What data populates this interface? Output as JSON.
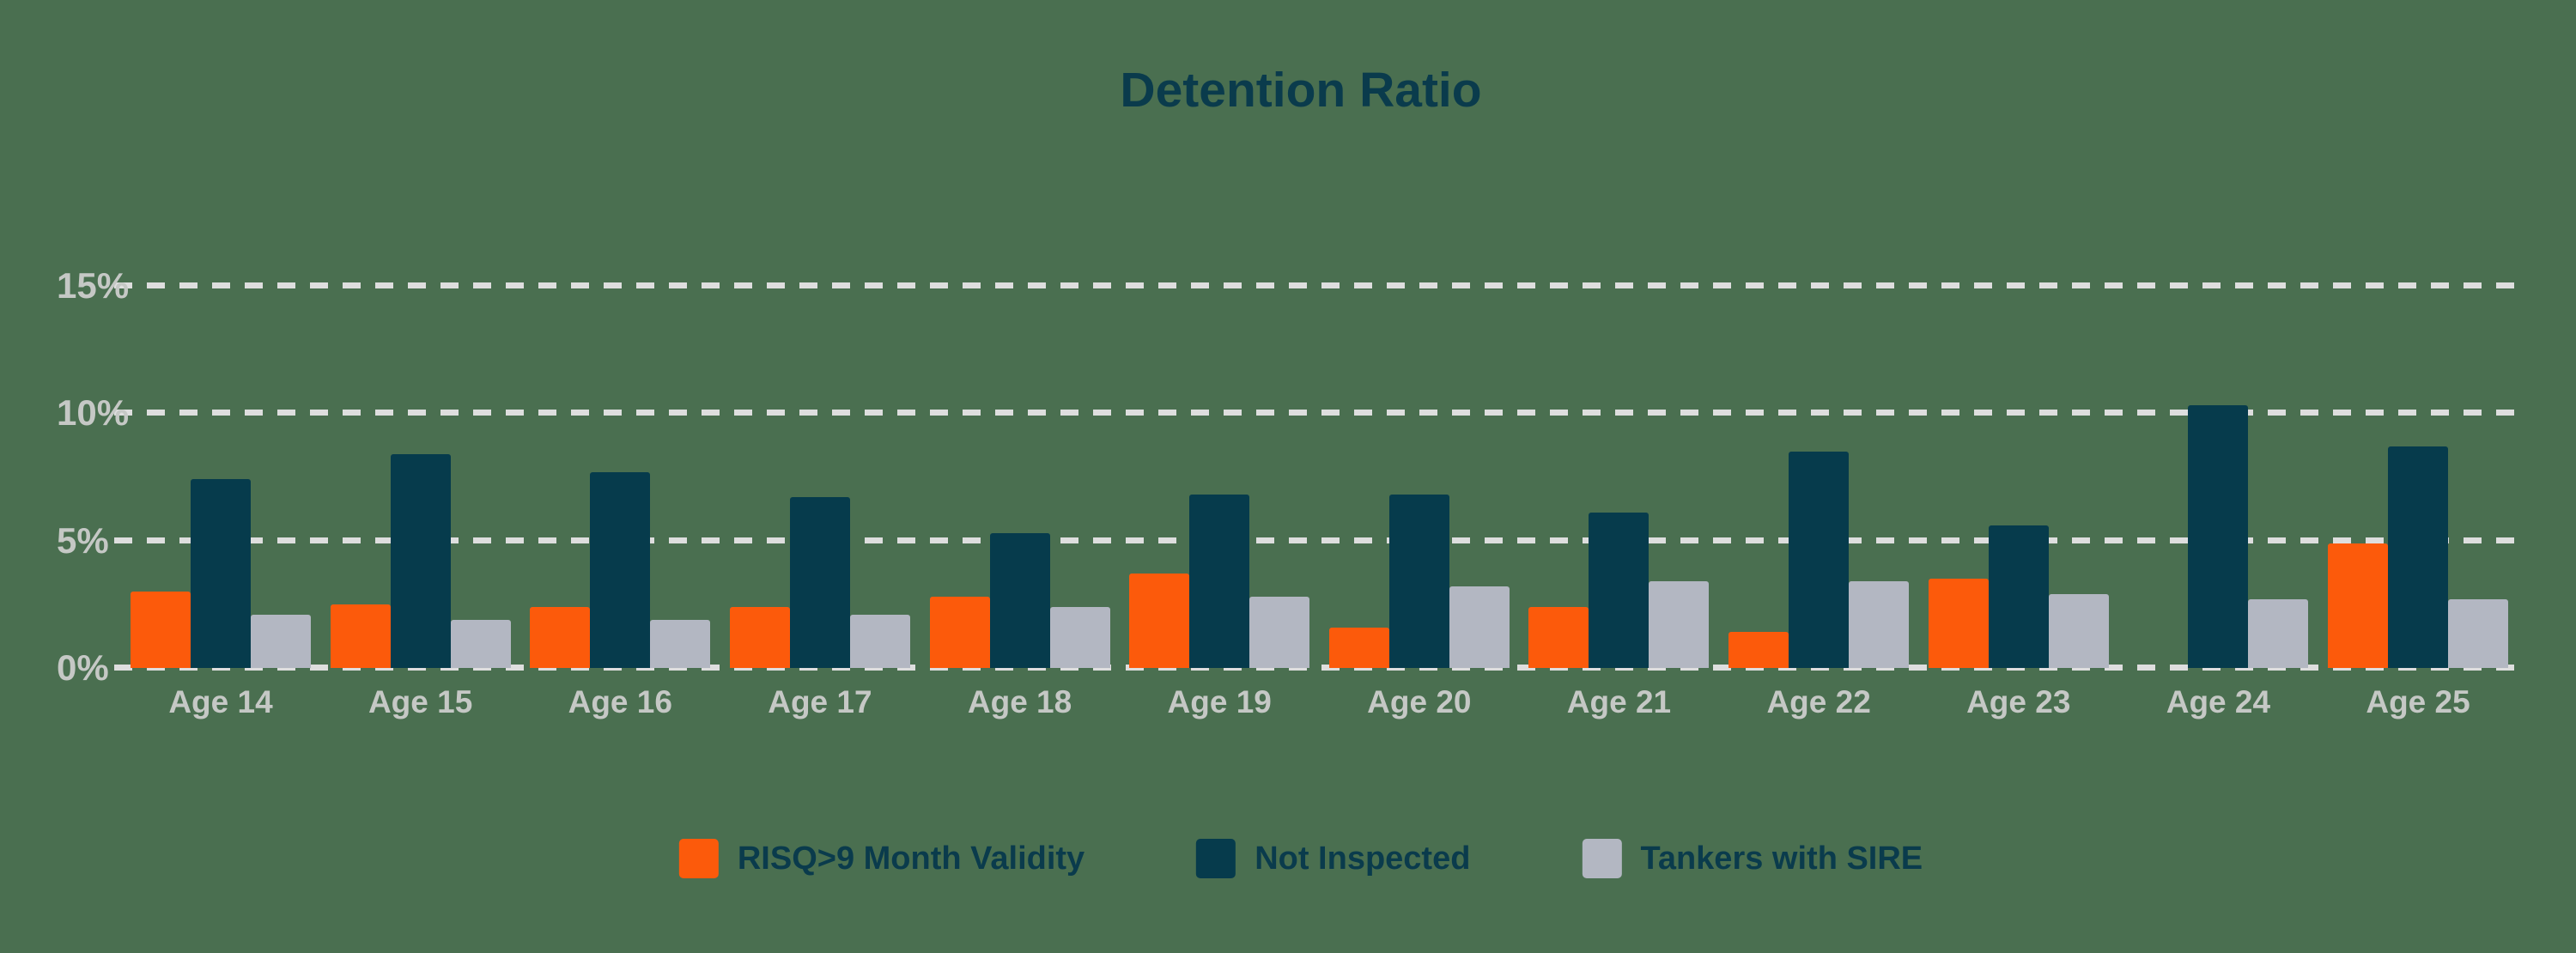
{
  "title": "Detention Ratio",
  "colors": {
    "background": "#4A6F50",
    "grid": "#DEDEDE",
    "axis_text": "#C5C8C5",
    "title_text": "#0A3B4C"
  },
  "chart_data": {
    "type": "bar",
    "title": "Detention Ratio",
    "categories": [
      "Age 14",
      "Age 15",
      "Age 16",
      "Age 17",
      "Age 18",
      "Age 19",
      "Age 20",
      "Age 21",
      "Age 22",
      "Age 23",
      "Age 24",
      "Age 25"
    ],
    "series": [
      {
        "name": "RISQ>9 Month Validity",
        "color": "#FC5A0B",
        "values": [
          3.0,
          2.5,
          2.4,
          2.4,
          2.8,
          3.7,
          1.6,
          2.4,
          1.4,
          3.5,
          0,
          4.9
        ]
      },
      {
        "name": "Not Inspected",
        "color": "#063B4C",
        "values": [
          7.4,
          8.4,
          7.7,
          6.7,
          5.3,
          6.8,
          6.8,
          6.1,
          8.5,
          5.6,
          10.3,
          8.7
        ]
      },
      {
        "name": "Tankers with SIRE",
        "color": "#B3B7C2",
        "values": [
          2.1,
          1.9,
          1.9,
          2.1,
          2.4,
          2.8,
          3.2,
          3.4,
          3.4,
          2.9,
          2.7,
          2.7
        ]
      }
    ],
    "xlabel": "",
    "ylabel": "",
    "ytick_values": [
      0,
      5,
      10,
      15
    ],
    "ytick_labels": [
      "0%",
      "5%",
      "10%",
      "15%"
    ],
    "ylim": [
      0,
      16.5
    ],
    "grid": "horizontal-dashed",
    "legend_position": "bottom-center"
  }
}
